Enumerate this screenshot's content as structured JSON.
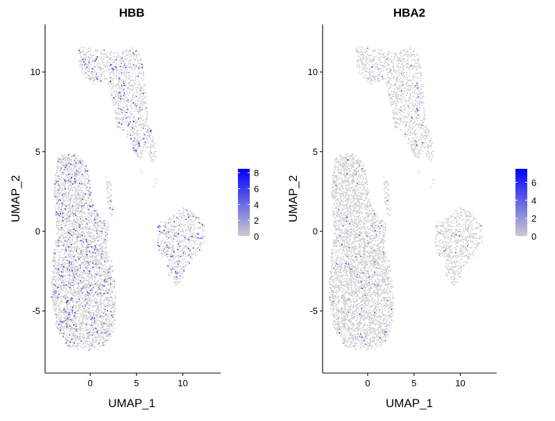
{
  "chart_data": [
    {
      "type": "scatter",
      "title": "HBB",
      "xlabel": "UMAP_1",
      "ylabel": "UMAP_2",
      "xlim": [
        -5,
        14
      ],
      "ylim": [
        -9,
        13
      ],
      "x_ticks": [
        0,
        5,
        10
      ],
      "y_ticks": [
        -5,
        0,
        5,
        10
      ],
      "legend": {
        "title": "",
        "position": "right",
        "min": 0,
        "max": 8.5,
        "ticks": [
          0,
          2,
          4,
          6,
          8
        ]
      },
      "low_color": "#cccccc",
      "high_color": "#0000ff",
      "high_frequency": 0.09
    },
    {
      "type": "scatter",
      "title": "HBA2",
      "xlabel": "UMAP_1",
      "ylabel": "UMAP_2",
      "xlim": [
        -5,
        14
      ],
      "ylim": [
        -9,
        13
      ],
      "x_ticks": [
        0,
        5,
        10
      ],
      "y_ticks": [
        -5,
        0,
        5,
        10
      ],
      "legend": {
        "title": "",
        "position": "right",
        "min": 0,
        "max": 7.5,
        "ticks": [
          0,
          2,
          4,
          6
        ]
      },
      "low_color": "#cccccc",
      "high_color": "#0000ff",
      "high_frequency": 0.02
    }
  ],
  "clusters": [
    {
      "region": "top",
      "polygon": [
        [
          -1.2,
          11.6
        ],
        [
          0.8,
          11.5
        ],
        [
          3,
          11.2
        ],
        [
          4.8,
          11.6
        ],
        [
          5.6,
          11
        ],
        [
          6,
          9
        ],
        [
          6.2,
          7
        ],
        [
          6.8,
          6
        ],
        [
          7.2,
          5
        ],
        [
          6.8,
          4.2
        ],
        [
          6,
          5
        ],
        [
          5.3,
          4.5
        ],
        [
          4.3,
          5.5
        ],
        [
          3.8,
          6.3
        ],
        [
          2.8,
          6.5
        ],
        [
          2.5,
          8
        ],
        [
          1.8,
          9.5
        ],
        [
          0.2,
          9.2
        ],
        [
          -1,
          10
        ],
        [
          -1.3,
          10.8
        ]
      ],
      "density": 1300
    },
    {
      "region": "left",
      "polygon": [
        [
          -3.5,
          4.8
        ],
        [
          -1.5,
          4.9
        ],
        [
          -0.3,
          4.2
        ],
        [
          0.2,
          2
        ],
        [
          1,
          1
        ],
        [
          2,
          0.5
        ],
        [
          1.8,
          -1
        ],
        [
          2.4,
          -2
        ],
        [
          2.8,
          -4
        ],
        [
          2.8,
          -5.5
        ],
        [
          2.2,
          -6.8
        ],
        [
          1,
          -7.4
        ],
        [
          -1,
          -7.5
        ],
        [
          -2.6,
          -7.2
        ],
        [
          -3.7,
          -6
        ],
        [
          -4.2,
          -4
        ],
        [
          -4.1,
          -2
        ],
        [
          -3.6,
          0
        ],
        [
          -3.9,
          2
        ],
        [
          -3.8,
          3.5
        ]
      ],
      "density": 4200
    },
    {
      "region": "strand",
      "polygon": [
        [
          1.7,
          3.5
        ],
        [
          2.3,
          3
        ],
        [
          2.5,
          1
        ],
        [
          2.3,
          0.8
        ],
        [
          1.8,
          2
        ]
      ],
      "density": 60
    },
    {
      "region": "right",
      "polygon": [
        [
          7.3,
          0.5
        ],
        [
          8.5,
          0.8
        ],
        [
          9.2,
          1.2
        ],
        [
          10,
          1.5
        ],
        [
          11.2,
          1.2
        ],
        [
          12.3,
          0.5
        ],
        [
          12.5,
          -0.5
        ],
        [
          11.5,
          -1.5
        ],
        [
          10.2,
          -2.3
        ],
        [
          10,
          -3.2
        ],
        [
          9.3,
          -3.4
        ],
        [
          8.5,
          -2.8
        ],
        [
          8.3,
          -1.7
        ],
        [
          7.6,
          -1.5
        ],
        [
          7.3,
          -1
        ]
      ],
      "density": 700
    }
  ]
}
